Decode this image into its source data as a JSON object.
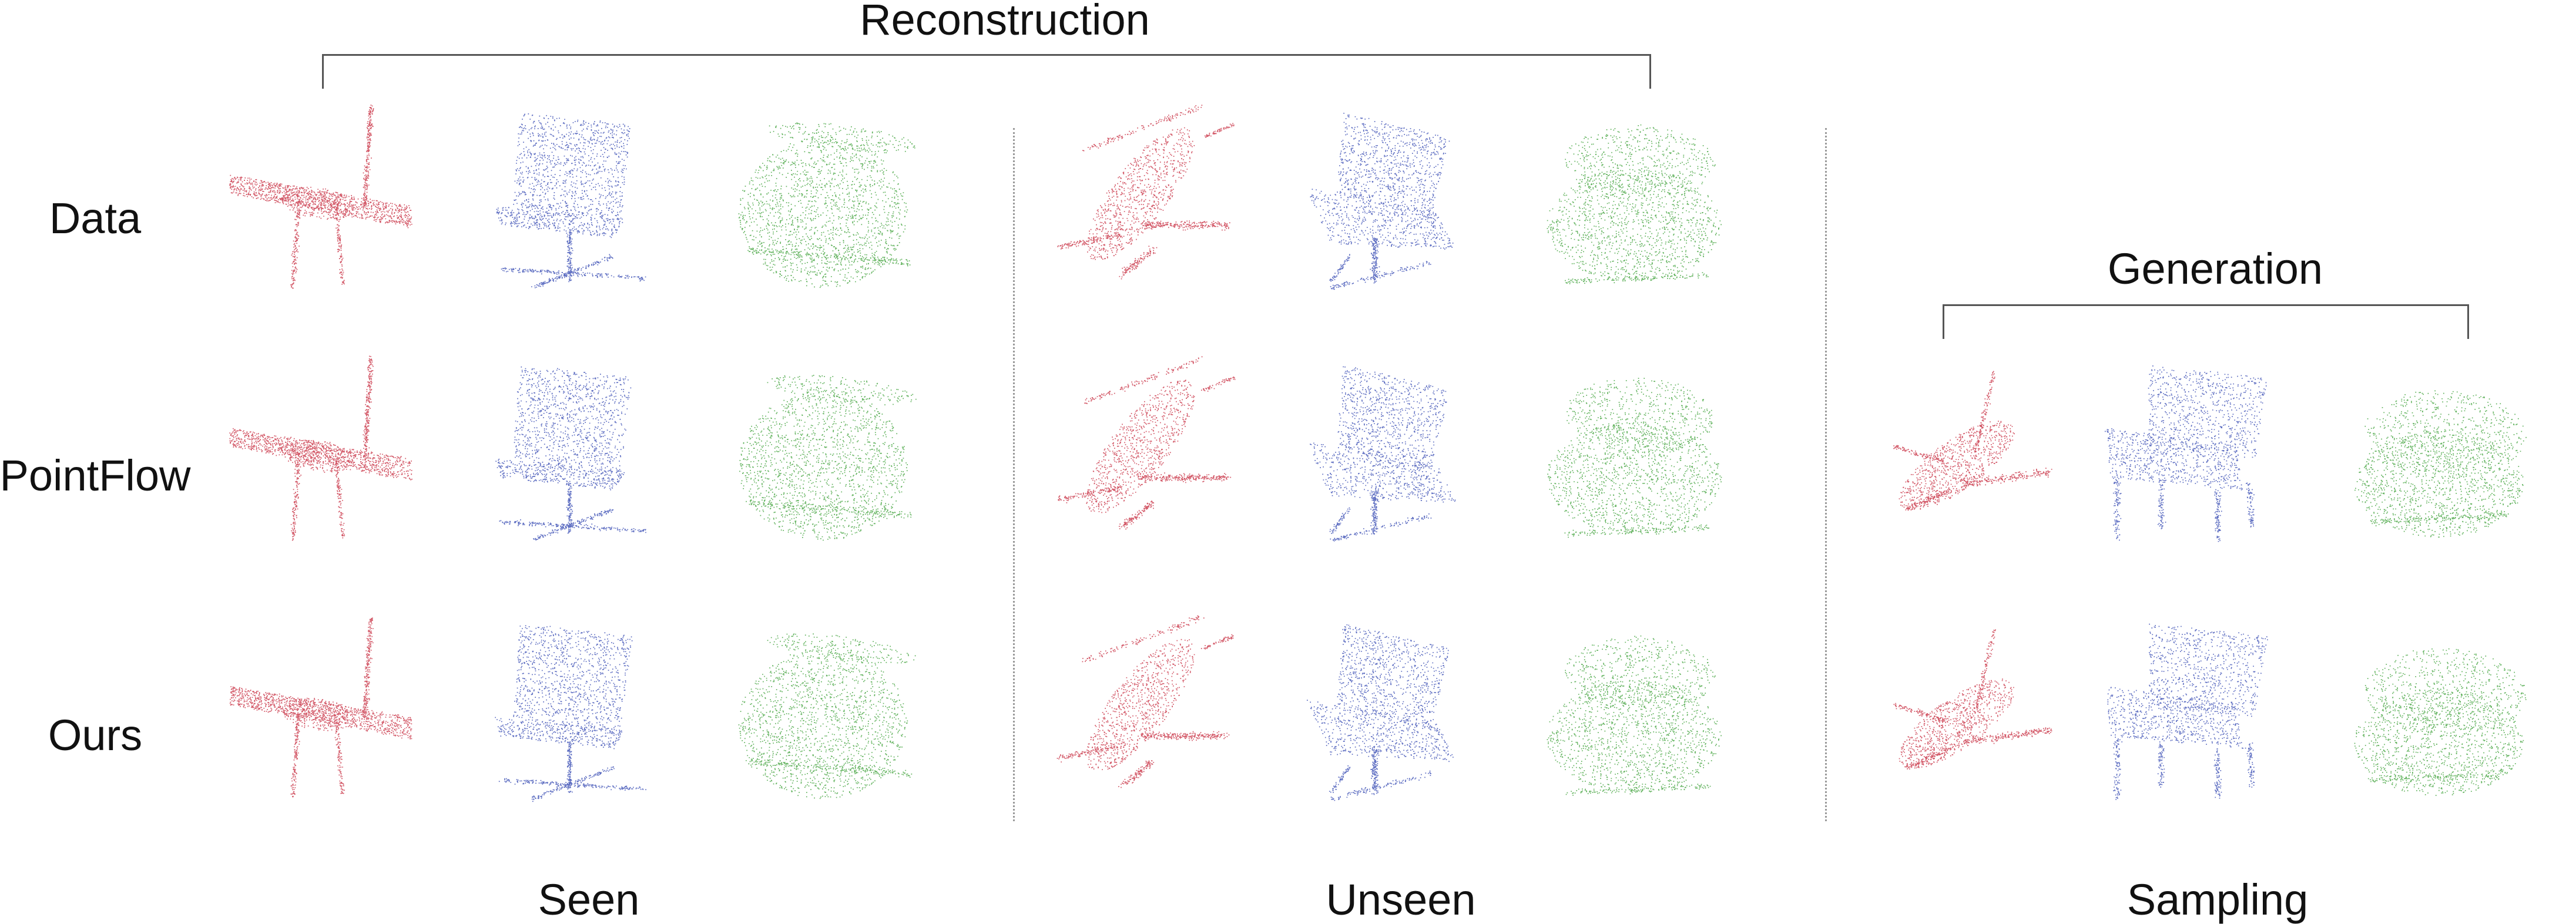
{
  "figure": {
    "groups": {
      "reconstruction": "Reconstruction",
      "generation": "Generation"
    },
    "rows": [
      "Data",
      "PointFlow",
      "Ours"
    ],
    "sections": [
      "Seen",
      "Unseen",
      "Sampling"
    ],
    "colors": {
      "airplane": "#c42136",
      "chair": "#2a3fae",
      "car": "#2f9a2a"
    },
    "objects": [
      "airplane",
      "chair",
      "car"
    ]
  }
}
